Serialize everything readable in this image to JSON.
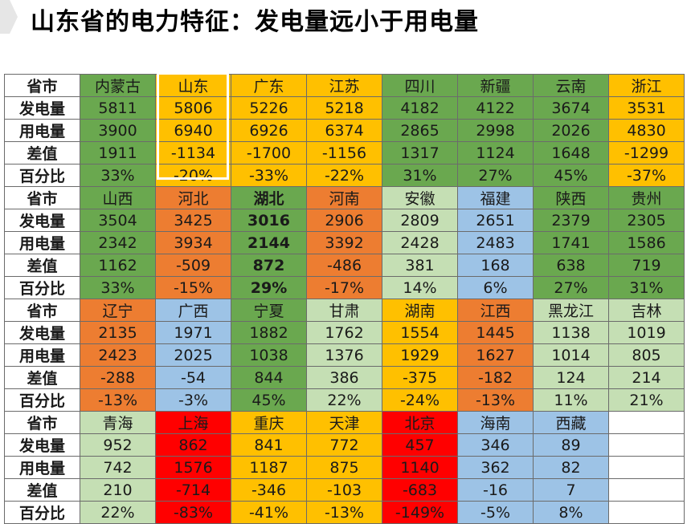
{
  "title": "山东省的电力特征：发电量远小于用电量",
  "row_labels": [
    "省市",
    "发电量",
    "用电量",
    "差值",
    "百分比"
  ],
  "colors": {
    "green": "#6aa84f",
    "orange": "#ed7d31",
    "yellow": "#ffc000",
    "light_green": "#c5dfb4",
    "blue": "#9dc3e6",
    "red": "#ff0000",
    "white": "#ffffff"
  },
  "blocks": [
    {
      "provinces": [
        {
          "name": "内蒙古",
          "gen": "5811",
          "use": "3900",
          "diff": "1911",
          "pct": "33%",
          "color": "green"
        },
        {
          "name": "山东",
          "gen": "5806",
          "use": "6940",
          "diff": "-1134",
          "pct": "-20%",
          "color": "yellow"
        },
        {
          "name": "广东",
          "gen": "5226",
          "use": "6926",
          "diff": "-1700",
          "pct": "-33%",
          "color": "yellow"
        },
        {
          "name": "江苏",
          "gen": "5218",
          "use": "6374",
          "diff": "-1156",
          "pct": "-22%",
          "color": "yellow"
        },
        {
          "name": "四川",
          "gen": "4182",
          "use": "2865",
          "diff": "1317",
          "pct": "31%",
          "color": "green"
        },
        {
          "name": "新疆",
          "gen": "4122",
          "use": "2998",
          "diff": "1124",
          "pct": "27%",
          "color": "green"
        },
        {
          "name": "云南",
          "gen": "3674",
          "use": "2026",
          "diff": "1648",
          "pct": "45%",
          "color": "green"
        },
        {
          "name": "浙江",
          "gen": "3531",
          "use": "4830",
          "diff": "-1299",
          "pct": "-37%",
          "color": "yellow"
        }
      ]
    },
    {
      "provinces": [
        {
          "name": "山西",
          "gen": "3504",
          "use": "2342",
          "diff": "1162",
          "pct": "33%",
          "color": "green"
        },
        {
          "name": "河北",
          "gen": "3425",
          "use": "3934",
          "diff": "-509",
          "pct": "-15%",
          "color": "orange"
        },
        {
          "name": "湖北",
          "gen": "3016",
          "use": "2144",
          "diff": "872",
          "pct": "29%",
          "color": "green",
          "bold": true
        },
        {
          "name": "河南",
          "gen": "2906",
          "use": "3392",
          "diff": "-486",
          "pct": "-17%",
          "color": "orange"
        },
        {
          "name": "安徽",
          "gen": "2809",
          "use": "2428",
          "diff": "381",
          "pct": "14%",
          "color": "light_green"
        },
        {
          "name": "福建",
          "gen": "2651",
          "use": "2483",
          "diff": "168",
          "pct": "6%",
          "color": "blue"
        },
        {
          "name": "陕西",
          "gen": "2379",
          "use": "1741",
          "diff": "638",
          "pct": "27%",
          "color": "green"
        },
        {
          "name": "贵州",
          "gen": "2305",
          "use": "1586",
          "diff": "719",
          "pct": "31%",
          "color": "green"
        }
      ]
    },
    {
      "provinces": [
        {
          "name": "辽宁",
          "gen": "2135",
          "use": "2423",
          "diff": "-288",
          "pct": "-13%",
          "color": "orange"
        },
        {
          "name": "广西",
          "gen": "1971",
          "use": "2025",
          "diff": "-54",
          "pct": "-3%",
          "color": "blue"
        },
        {
          "name": "宁夏",
          "gen": "1882",
          "use": "1038",
          "diff": "844",
          "pct": "45%",
          "color": "green"
        },
        {
          "name": "甘肃",
          "gen": "1762",
          "use": "1376",
          "diff": "386",
          "pct": "22%",
          "color": "light_green"
        },
        {
          "name": "湖南",
          "gen": "1554",
          "use": "1929",
          "diff": "-375",
          "pct": "-24%",
          "color": "yellow"
        },
        {
          "name": "江西",
          "gen": "1445",
          "use": "1627",
          "diff": "-182",
          "pct": "-13%",
          "color": "orange"
        },
        {
          "name": "黑龙江",
          "gen": "1138",
          "use": "1014",
          "diff": "124",
          "pct": "11%",
          "color": "light_green"
        },
        {
          "name": "吉林",
          "gen": "1019",
          "use": "805",
          "diff": "214",
          "pct": "21%",
          "color": "light_green"
        }
      ]
    },
    {
      "provinces": [
        {
          "name": "青海",
          "gen": "952",
          "use": "742",
          "diff": "210",
          "pct": "22%",
          "color": "light_green"
        },
        {
          "name": "上海",
          "gen": "862",
          "use": "1576",
          "diff": "-714",
          "pct": "-83%",
          "color": "red"
        },
        {
          "name": "重庆",
          "gen": "841",
          "use": "1187",
          "diff": "-346",
          "pct": "-41%",
          "color": "yellow"
        },
        {
          "name": "天津",
          "gen": "772",
          "use": "875",
          "diff": "-103",
          "pct": "-13%",
          "color": "yellow"
        },
        {
          "name": "北京",
          "gen": "457",
          "use": "1140",
          "diff": "-683",
          "pct": "-149%",
          "color": "red"
        },
        {
          "name": "海南",
          "gen": "346",
          "use": "362",
          "diff": "-16",
          "pct": "-5%",
          "color": "blue"
        },
        {
          "name": "西藏",
          "gen": "89",
          "use": "82",
          "diff": "7",
          "pct": "8%",
          "color": "blue"
        },
        {
          "name": "",
          "gen": "",
          "use": "",
          "diff": "",
          "pct": "",
          "color": "white"
        }
      ]
    }
  ]
}
